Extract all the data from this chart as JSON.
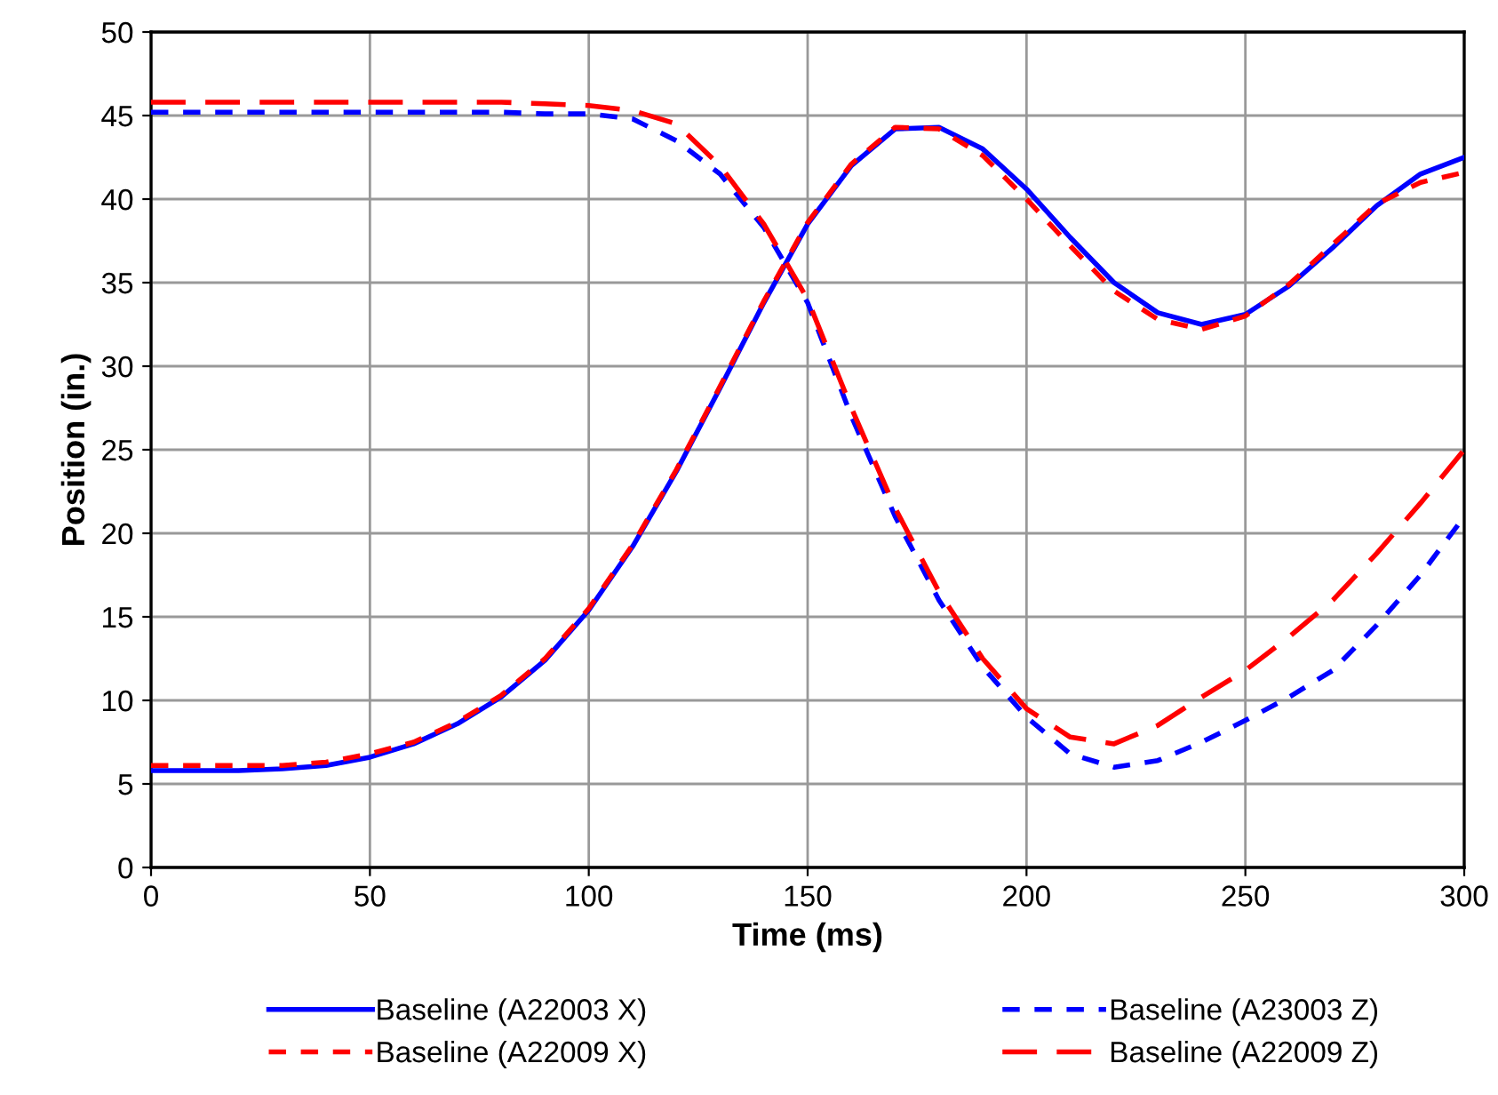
{
  "chart_data": {
    "type": "line",
    "xlabel": "Time (ms)",
    "ylabel": "Position (in.)",
    "xlim": [
      0,
      300
    ],
    "xticks": [
      0,
      50,
      100,
      150,
      200,
      250,
      300
    ],
    "ylim": [
      0,
      50
    ],
    "yticks": [
      0,
      5,
      10,
      15,
      20,
      25,
      30,
      35,
      40,
      45,
      50
    ],
    "grid": true,
    "legend": "bottom",
    "marker": "none",
    "x": [
      0,
      10,
      20,
      30,
      40,
      50,
      60,
      70,
      80,
      90,
      100,
      110,
      120,
      130,
      140,
      150,
      160,
      170,
      180,
      190,
      200,
      210,
      220,
      230,
      240,
      250,
      260,
      270,
      280,
      290,
      300
    ],
    "series": [
      {
        "name": "Baseline (A22003 X)",
        "color": "#0000ff",
        "line_style": "solid",
        "values": [
          5.8,
          5.8,
          5.8,
          5.9,
          6.1,
          6.6,
          7.4,
          8.6,
          10.2,
          12.4,
          15.4,
          19.2,
          23.7,
          28.7,
          33.8,
          38.5,
          42.0,
          44.2,
          44.3,
          43.0,
          40.6,
          37.7,
          35.0,
          33.2,
          32.5,
          33.1,
          34.8,
          37.1,
          39.6,
          41.5,
          42.5
        ]
      },
      {
        "name": "Baseline (A22009 X)",
        "color": "#ff0000",
        "line_style": "dotted",
        "values": [
          6.1,
          6.1,
          6.1,
          6.1,
          6.3,
          6.8,
          7.5,
          8.7,
          10.3,
          12.5,
          15.5,
          19.3,
          23.8,
          28.8,
          33.9,
          38.6,
          42.1,
          44.3,
          44.2,
          42.6,
          40.0,
          37.2,
          34.5,
          32.8,
          32.2,
          33.0,
          34.9,
          37.3,
          39.7,
          41.0,
          41.6
        ]
      },
      {
        "name": "Baseline (A23003 Z)",
        "color": "#0000ff",
        "line_style": "dotted",
        "values": [
          45.2,
          45.2,
          45.2,
          45.2,
          45.2,
          45.2,
          45.2,
          45.2,
          45.2,
          45.1,
          45.1,
          44.8,
          43.5,
          41.5,
          38.3,
          33.8,
          27.0,
          21.0,
          16.0,
          12.0,
          9.0,
          6.8,
          6.0,
          6.4,
          7.5,
          8.8,
          10.2,
          11.8,
          14.5,
          17.5,
          21.0
        ]
      },
      {
        "name": "Baseline (A22009 Z)",
        "color": "#ff0000",
        "line_style": "dashed",
        "values": [
          45.8,
          45.8,
          45.8,
          45.8,
          45.8,
          45.8,
          45.8,
          45.8,
          45.8,
          45.7,
          45.6,
          45.3,
          44.5,
          42.0,
          38.5,
          34.0,
          27.5,
          21.5,
          16.5,
          12.5,
          9.5,
          7.8,
          7.4,
          8.5,
          10.2,
          11.8,
          13.8,
          16.0,
          18.8,
          21.8,
          25.0
        ]
      }
    ]
  }
}
